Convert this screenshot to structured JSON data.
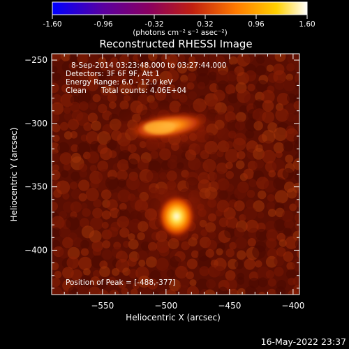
{
  "colorbar": {
    "ticks": [
      "-1.60",
      "-0.96",
      "-0.32",
      "0.32",
      "0.96",
      "1.60"
    ],
    "units": "(photons cm⁻² s⁻¹ asec⁻²)"
  },
  "title": "Reconstructed RHESSI Image",
  "annotations": {
    "time_range": "8-Sep-2014 03:23:48.000 to 03:27:44.000",
    "detectors": "Detectors: 3F 6F 9F, Att 1",
    "energy": "Energy Range: 6.0 - 12.0 keV",
    "clean": "Clean",
    "total_counts": "Total counts: 4.06E+04",
    "peak": "Position of Peak = [-488,-377]"
  },
  "axes": {
    "xlabel": "Heliocentric X (arcsec)",
    "ylabel": "Heliocentric Y (arcsec)",
    "xticks": [
      "-550",
      "-500",
      "-450",
      "-400"
    ],
    "yticks": [
      "-250",
      "-300",
      "-350",
      "-400"
    ]
  },
  "timestamp": "16-May-2022 23:37",
  "colors": {
    "cmap": [
      "#0000ff",
      "#5a00a0",
      "#8a0060",
      "#c02010",
      "#ff7a00",
      "#ffd000",
      "#ffffff"
    ],
    "background": "#000000"
  }
}
